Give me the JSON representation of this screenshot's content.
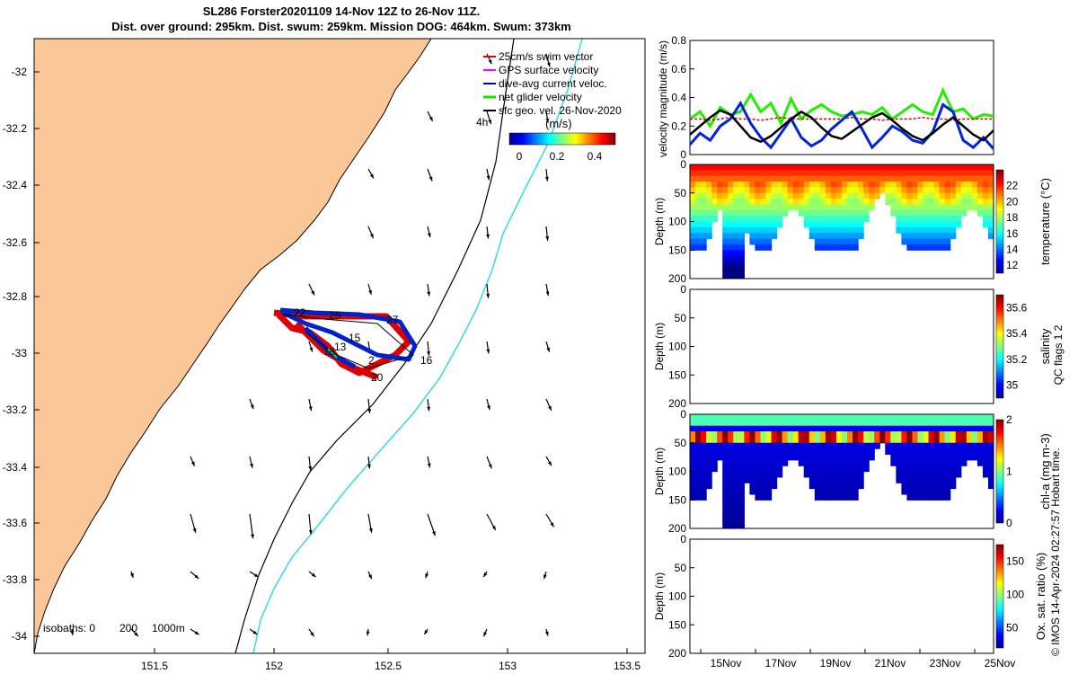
{
  "title": {
    "line1": "SL286 Forster20201109 14-Nov 12Z to 26-Nov 11Z.",
    "line2": "Dist. over ground: 295km. Dist. swum: 259km. Mission DOG: 464km. Swum: 373km"
  },
  "map": {
    "lon_ticks": [
      "151.5",
      "152",
      "152.5",
      "153",
      "153.5"
    ],
    "lat_ticks": [
      "-32",
      "-32.2",
      "-32.4",
      "-32.6",
      "-32.8",
      "-33",
      "-33.2",
      "-33.4",
      "-33.6",
      "-33.8",
      "-34"
    ],
    "legend": [
      {
        "label": "25cm/s swim vector",
        "color": "#dd0000"
      },
      {
        "label": "GPS surface velocity",
        "color": "#ff00ff"
      },
      {
        "label": "dive-avg current veloc.",
        "color": "#0000cc"
      },
      {
        "label": "net glider velocity",
        "color": "#22dd00"
      },
      {
        "label": "sfc geo. vel. 26-Nov-2020",
        "color": "#000000"
      }
    ],
    "colorbar": {
      "label": "(m/s)",
      "ticks": [
        "0",
        "0.2",
        "0.4"
      ],
      "tag": "4h"
    },
    "isobaths": {
      "label": "isobaths: 0",
      "values": [
        "200",
        "1000m"
      ]
    },
    "day_labels": [
      "22",
      "25",
      "27",
      "15",
      "13",
      "16",
      "2",
      "20",
      "18"
    ],
    "land_color": "#fac898",
    "isobath200_color": "#000000",
    "isobath1000_color": "#33dddd"
  },
  "chart_data": [
    {
      "type": "line",
      "ylabel": "velocity magnitude (m/s)",
      "ylim": [
        0,
        0.8
      ],
      "yticks": [
        "0",
        "0.2",
        "0.4",
        "0.6",
        "0.8"
      ],
      "series": [
        {
          "name": "net glider velocity",
          "color": "#22ee00",
          "values": [
            0.25,
            0.3,
            0.2,
            0.33,
            0.28,
            0.3,
            0.42,
            0.3,
            0.36,
            0.22,
            0.39,
            0.25,
            0.31,
            0.35,
            0.3,
            0.27,
            0.28,
            0.3,
            0.28,
            0.33,
            0.25,
            0.3,
            0.35,
            0.3,
            0.28,
            0.45,
            0.3,
            0.32,
            0.25,
            0.28,
            0.27
          ]
        },
        {
          "name": "swim",
          "color": "#dd0000",
          "values": [
            0.25,
            0.25,
            0.24,
            0.25,
            0.26,
            0.25,
            0.25,
            0.24,
            0.25,
            0.26,
            0.25,
            0.25,
            0.25,
            0.25,
            0.25,
            0.25,
            0.26,
            0.25,
            0.25,
            0.24,
            0.25,
            0.25,
            0.25,
            0.26,
            0.25,
            0.25,
            0.24,
            0.25,
            0.25,
            0.25,
            0.25
          ]
        },
        {
          "name": "dive-avg current",
          "color": "#0022dd",
          "values": [
            0.07,
            0.15,
            0.1,
            0.2,
            0.25,
            0.36,
            0.22,
            0.12,
            0.05,
            0.15,
            0.25,
            0.12,
            0.06,
            0.1,
            0.18,
            0.24,
            0.3,
            0.18,
            0.05,
            0.12,
            0.2,
            0.16,
            0.1,
            0.08,
            0.16,
            0.35,
            0.3,
            0.1,
            0.05,
            0.12,
            0.04
          ]
        },
        {
          "name": "sfc geo. vel.",
          "color": "#000000",
          "values": [
            0.14,
            0.2,
            0.26,
            0.31,
            0.28,
            0.2,
            0.12,
            0.09,
            0.13,
            0.19,
            0.25,
            0.3,
            0.26,
            0.19,
            0.13,
            0.11,
            0.16,
            0.21,
            0.26,
            0.29,
            0.24,
            0.18,
            0.13,
            0.1,
            0.15,
            0.21,
            0.26,
            0.2,
            0.14,
            0.1,
            0.17
          ]
        }
      ]
    },
    {
      "type": "heatmap",
      "colorbar_label": "temperature (°C)",
      "ylabel": "Depth (m)",
      "ylim": [
        200,
        0
      ],
      "yticks": [
        "0",
        "50",
        "100",
        "150",
        "200"
      ],
      "cbar_ticks": [
        "12",
        "14",
        "16",
        "18",
        "20",
        "22"
      ],
      "cbar_range": [
        11,
        24
      ]
    },
    {
      "type": "heatmap",
      "colorbar_label": "salinity",
      "ylabel": "Depth (m)",
      "ylim": [
        200,
        0
      ],
      "yticks": [
        "0",
        "50",
        "100",
        "150",
        "200"
      ],
      "cbar_ticks": [
        "35",
        "35.2",
        "35.4",
        "35.6"
      ],
      "cbar_range": [
        34.9,
        35.7
      ]
    },
    {
      "type": "heatmap",
      "colorbar_label": "chl-a (mg m-3)",
      "ylabel": "Depth (m)",
      "ylim": [
        200,
        0
      ],
      "yticks": [
        "0",
        "50",
        "100",
        "150",
        "200"
      ],
      "cbar_ticks": [
        "0",
        "1",
        "2"
      ],
      "cbar_range": [
        0,
        2
      ]
    },
    {
      "type": "heatmap",
      "colorbar_label": "Ox. sat. ratio (%)",
      "ylabel": "Depth (m)",
      "ylim": [
        200,
        0
      ],
      "yticks": [
        "0",
        "50",
        "100",
        "150",
        "200"
      ],
      "cbar_ticks": [
        "50",
        "100",
        "150"
      ],
      "cbar_range": [
        20,
        175
      ]
    }
  ],
  "time_axis": {
    "ticks": [
      "15Nov",
      "17Nov",
      "19Nov",
      "21Nov",
      "23Nov",
      "25Nov"
    ]
  },
  "side_note": "QC flags 1  2",
  "stamp": "© IMOS 14-Apr-2024 02:27:57 Hobart time."
}
